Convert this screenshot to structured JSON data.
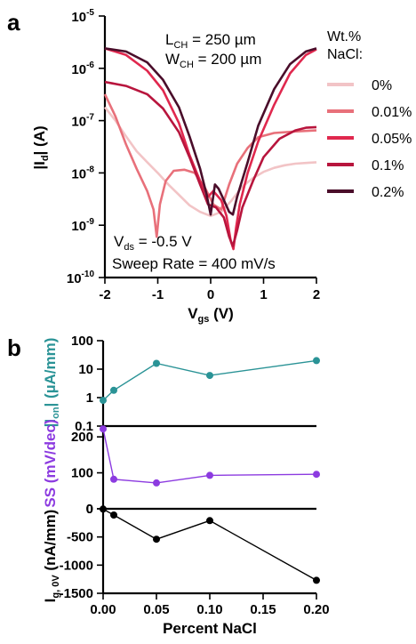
{
  "panels": {
    "a": "a",
    "b": "b"
  },
  "chart_data": [
    {
      "type": "line",
      "panel": "a",
      "xlabel": "Vgs (V)",
      "ylabel": "|Id| (A)",
      "yscale": "log",
      "xlim": [
        -2,
        2
      ],
      "ylim": [
        1e-10,
        1e-05
      ],
      "x_ticks": [
        "-2",
        "-1",
        "0",
        "1",
        "2"
      ],
      "y_ticks": [
        "10-10",
        "10-9",
        "10-8",
        "10-7",
        "10-6",
        "10-5"
      ],
      "annotations": [
        "LCH = 250 µm",
        "WCH = 200 µm",
        "Vds = -0.5 V",
        "Sweep Rate = 400 mV/s"
      ],
      "legend_title": [
        "Wt.%",
        "NaCl:"
      ],
      "legend_position": "right",
      "series": [
        {
          "name": "0%",
          "color": "#f2c4c6",
          "points": [
            [
              -2,
              1.8e-07
            ],
            [
              -1.8,
              1e-07
            ],
            [
              -1.6,
              5e-08
            ],
            [
              -1.4,
              2.6e-08
            ],
            [
              -1.2,
              1.6e-08
            ],
            [
              -1.0,
              1e-08
            ],
            [
              -0.8,
              6e-09
            ],
            [
              -0.6,
              3.8e-09
            ],
            [
              -0.4,
              2.4e-09
            ],
            [
              -0.2,
              1.8e-09
            ],
            [
              0.0,
              1.5e-09
            ],
            [
              0.2,
              1.8e-09
            ],
            [
              0.4,
              3e-09
            ],
            [
              0.6,
              5.5e-09
            ],
            [
              0.8,
              8e-09
            ],
            [
              1.0,
              1.05e-08
            ],
            [
              1.2,
              1.25e-08
            ],
            [
              1.4,
              1.4e-08
            ],
            [
              1.6,
              1.5e-08
            ],
            [
              1.8,
              1.55e-08
            ],
            [
              2.0,
              1.6e-08
            ]
          ]
        },
        {
          "name": "0.01%",
          "color": "#e8707a",
          "points": [
            [
              -2,
              3.2e-07
            ],
            [
              -1.8,
              1.2e-07
            ],
            [
              -1.6,
              3.5e-08
            ],
            [
              -1.4,
              1.2e-08
            ],
            [
              -1.2,
              4.5e-09
            ],
            [
              -1.08,
              2e-09
            ],
            [
              -1.02,
              6e-10
            ],
            [
              -0.96,
              2.5e-09
            ],
            [
              -0.85,
              7e-09
            ],
            [
              -0.7,
              1.1e-08
            ],
            [
              -0.5,
              1.15e-08
            ],
            [
              -0.3,
              1e-08
            ],
            [
              -0.1,
              5e-09
            ],
            [
              0.05,
              2.5e-09
            ],
            [
              0.2,
              2e-09
            ],
            [
              0.35,
              6e-09
            ],
            [
              0.5,
              1.5e-08
            ],
            [
              0.7,
              3e-08
            ],
            [
              0.9,
              4.8e-08
            ],
            [
              1.2,
              5.8e-08
            ],
            [
              1.6,
              6.2e-08
            ],
            [
              2.0,
              6.5e-08
            ]
          ]
        },
        {
          "name": "0.05%",
          "color": "#e0284e",
          "points": [
            [
              -2,
              2.4e-06
            ],
            [
              -1.6,
              1.8e-06
            ],
            [
              -1.2,
              9e-07
            ],
            [
              -0.9,
              3.8e-07
            ],
            [
              -0.6,
              9e-08
            ],
            [
              -0.4,
              2.2e-08
            ],
            [
              -0.2,
              7e-09
            ],
            [
              -0.05,
              3.5e-09
            ],
            [
              0.05,
              4.5e-09
            ],
            [
              0.2,
              3e-09
            ],
            [
              0.3,
              1.5e-09
            ],
            [
              0.38,
              5e-10
            ],
            [
              0.43,
              3.5e-10
            ],
            [
              0.48,
              9e-10
            ],
            [
              0.55,
              2.5e-09
            ],
            [
              0.7,
              1e-08
            ],
            [
              0.9,
              4e-08
            ],
            [
              1.2,
              2e-07
            ],
            [
              1.5,
              8e-07
            ],
            [
              1.8,
              1.8e-06
            ],
            [
              2.0,
              2.3e-06
            ]
          ]
        },
        {
          "name": "0.1%",
          "color": "#b8153d",
          "points": [
            [
              -2,
              5.5e-07
            ],
            [
              -1.6,
              4.6e-07
            ],
            [
              -1.2,
              3.2e-07
            ],
            [
              -0.9,
              1.7e-07
            ],
            [
              -0.6,
              6e-08
            ],
            [
              -0.4,
              2e-08
            ],
            [
              -0.2,
              6e-09
            ],
            [
              -0.05,
              2.5e-09
            ],
            [
              0.1,
              2.2e-09
            ],
            [
              0.25,
              1.4e-09
            ],
            [
              0.35,
              6e-10
            ],
            [
              0.42,
              4e-10
            ],
            [
              0.5,
              8e-10
            ],
            [
              0.6,
              2.2e-09
            ],
            [
              0.8,
              7e-09
            ],
            [
              1.0,
              2e-08
            ],
            [
              1.3,
              4.5e-08
            ],
            [
              1.6,
              6.5e-08
            ],
            [
              1.8,
              7.3e-08
            ],
            [
              2.0,
              7.5e-08
            ]
          ]
        },
        {
          "name": "0.2%",
          "color": "#4a0d2a",
          "points": [
            [
              -2,
              2.4e-06
            ],
            [
              -1.6,
              2.1e-06
            ],
            [
              -1.2,
              1.3e-06
            ],
            [
              -0.9,
              6e-07
            ],
            [
              -0.6,
              1.8e-07
            ],
            [
              -0.4,
              5e-08
            ],
            [
              -0.2,
              1.2e-08
            ],
            [
              -0.08,
              4e-09
            ],
            [
              0.0,
              1.6e-09
            ],
            [
              0.08,
              6e-09
            ],
            [
              0.15,
              5e-09
            ],
            [
              0.25,
              3e-09
            ],
            [
              0.35,
              1.8e-09
            ],
            [
              0.42,
              1.6e-09
            ],
            [
              0.5,
              3.5e-09
            ],
            [
              0.7,
              1.6e-08
            ],
            [
              0.9,
              8e-08
            ],
            [
              1.2,
              4e-07
            ],
            [
              1.5,
              1.2e-06
            ],
            [
              1.8,
              2.1e-06
            ],
            [
              2.0,
              2.4e-06
            ]
          ]
        }
      ]
    },
    {
      "type": "line",
      "panel": "b",
      "xlabel": "Percent NaCl",
      "x_ticks": [
        "0.00",
        "0.05",
        "0.10",
        "0.15",
        "0.20"
      ],
      "xlim": [
        0,
        0.2
      ],
      "subplots": [
        {
          "ylabel": "|Ion| (µA/mm)",
          "yscale": "log",
          "ylim": [
            0.1,
            100
          ],
          "y_ticks": [
            "0.1",
            "1",
            "10",
            "100"
          ],
          "color": "#2a9396",
          "x": [
            0,
            0.01,
            0.05,
            0.1,
            0.2
          ],
          "values": [
            0.8,
            1.8,
            16,
            6,
            20
          ]
        },
        {
          "ylabel": "SS (mV/dec)",
          "yscale": "linear",
          "ylim": [
            0,
            230
          ],
          "y_ticks": [
            "0",
            "100",
            "200"
          ],
          "color": "#8c3be0",
          "x": [
            0,
            0.01,
            0.05,
            0.1,
            0.2
          ],
          "values": [
            222,
            82,
            72,
            93,
            96
          ]
        },
        {
          "ylabel": "Ig, 0V (nA/mm)",
          "yscale": "linear",
          "ylim": [
            -1500,
            0
          ],
          "y_ticks": [
            "0",
            "-500",
            "-1000",
            "-1500"
          ],
          "color": "#000000",
          "x": [
            0,
            0.01,
            0.05,
            0.1,
            0.2
          ],
          "values": [
            -5,
            -110,
            -540,
            -210,
            -1270
          ]
        }
      ]
    }
  ]
}
